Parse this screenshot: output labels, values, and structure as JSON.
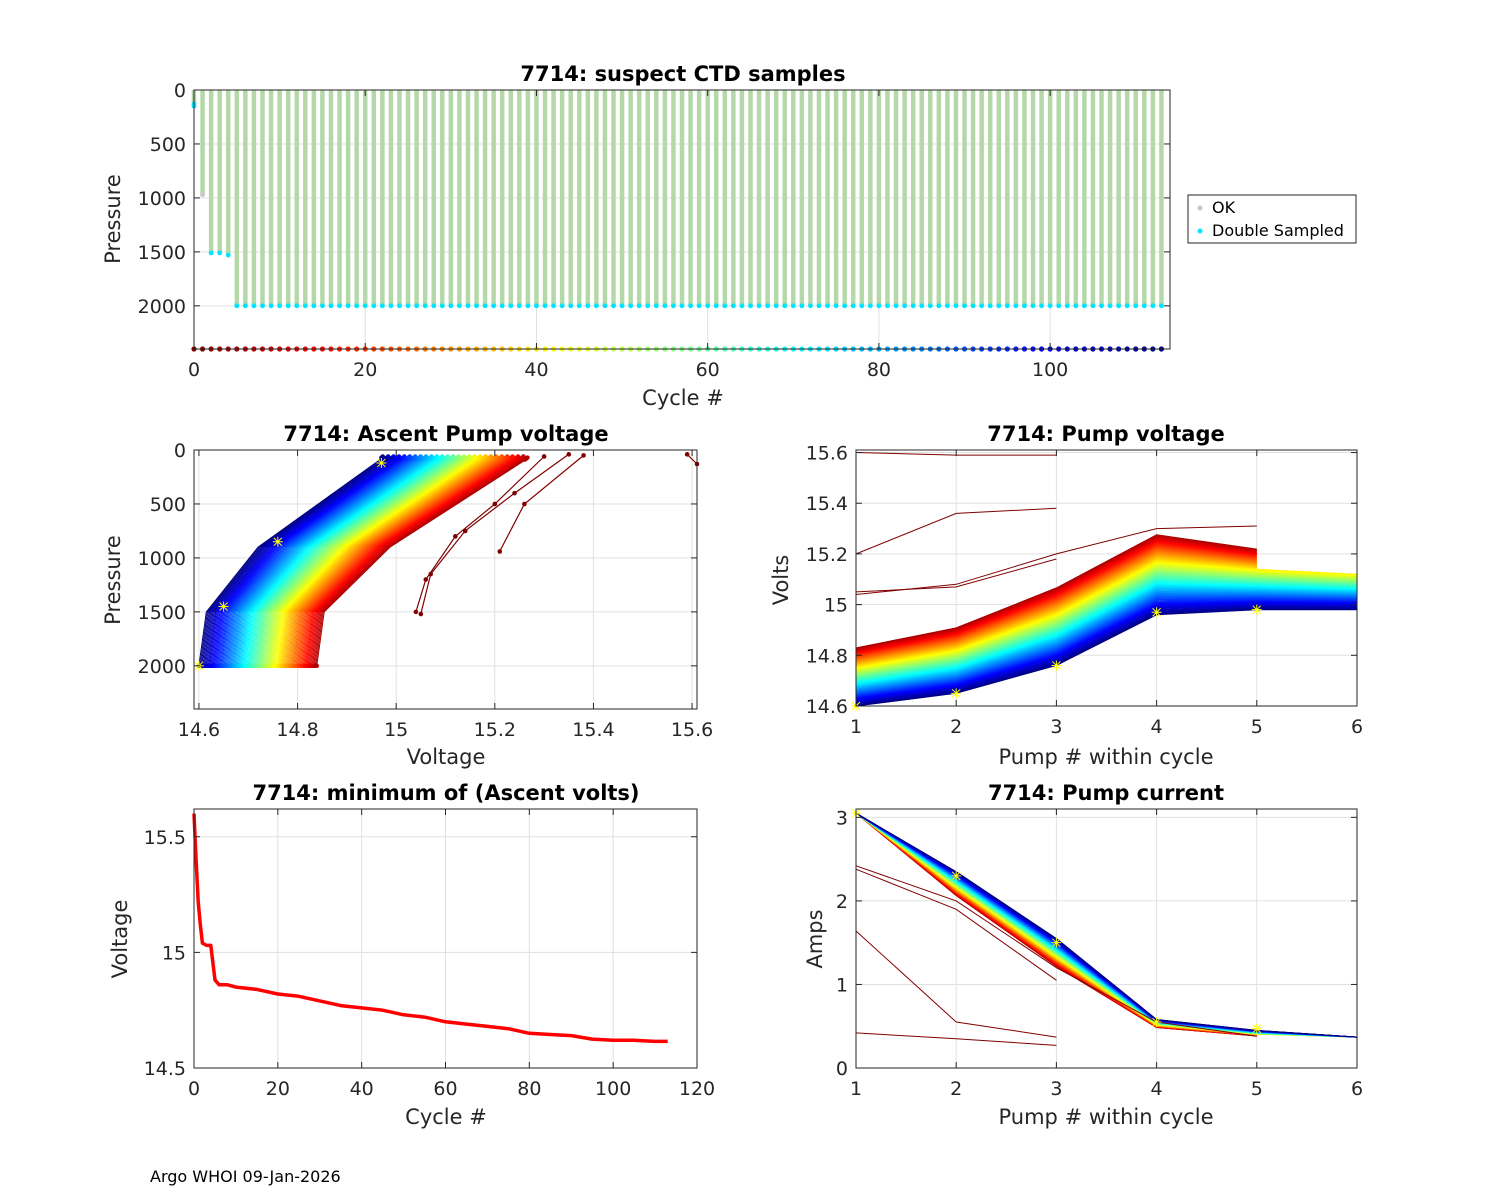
{
  "footer": "Argo WHOI 09-Jan-2026",
  "colors": {
    "ok_bar": "#b5d8a9",
    "double_sampled": "#00e5ff",
    "ok_point": "#c8c8c8",
    "min_line": "#ff0000",
    "marker": "#ffff00",
    "dark_red": "#800000"
  },
  "chart_data": [
    {
      "id": "suspect",
      "type": "scatter",
      "title": "7714: suspect CTD samples",
      "xlabel": "Cycle #",
      "ylabel": "Pressure",
      "xlim": [
        0,
        114
      ],
      "ylim": [
        0,
        2400
      ],
      "y_reversed": true,
      "xticks": [
        "0",
        "20",
        "40",
        "60",
        "80",
        "100"
      ],
      "yticks": [
        "0",
        "500",
        "1000",
        "1500",
        "2000"
      ],
      "legend": [
        {
          "label": "OK",
          "color": "#c8c8c8"
        },
        {
          "label": "Double Sampled",
          "color": "#00e5ff"
        }
      ],
      "profile_depths": {
        "cycles_0_to_4": [
          150,
          970,
          1510,
          1510,
          1530
        ],
        "cycles_5_to_113": 2000
      },
      "cycle_count": 114,
      "colorbar_row_pressure": 2400
    },
    {
      "id": "ascent",
      "type": "line",
      "title": "7714: Ascent Pump voltage",
      "xlabel": "Voltage",
      "ylabel": "Pressure",
      "xlim": [
        14.59,
        15.61
      ],
      "ylim": [
        0,
        2400
      ],
      "y_reversed": true,
      "xticks": [
        "14.6",
        "14.8",
        "15",
        "15.2",
        "15.4",
        "15.6"
      ],
      "yticks": [
        "0",
        "500",
        "1000",
        "1500",
        "2000"
      ],
      "series_summary": "one profile per cycle, colored by cycle number from dark red (early) to dark blue (late)"
    },
    {
      "id": "pumpv",
      "type": "line",
      "title": "7714: Pump voltage",
      "xlabel": "Pump # within cycle",
      "ylabel": "Volts",
      "xlim": [
        1,
        6
      ],
      "ylim": [
        14.6,
        15.61
      ],
      "xticks": [
        "1",
        "2",
        "3",
        "4",
        "5",
        "6"
      ],
      "yticks": [
        "14.6",
        "14.8",
        "15",
        "15.2",
        "15.4",
        "15.6"
      ],
      "series_summary": "one line per cycle across pump number, colored by cycle"
    },
    {
      "id": "minv",
      "type": "line",
      "title": "7714: minimum of (Ascent volts)",
      "xlabel": "Cycle #",
      "ylabel": "Voltage",
      "xlim": [
        0,
        120
      ],
      "ylim": [
        14.5,
        15.62
      ],
      "xticks": [
        "0",
        "20",
        "40",
        "60",
        "80",
        "100",
        "120"
      ],
      "yticks": [
        "14.5",
        "15",
        "15.5"
      ],
      "x": [
        0,
        0.5,
        1,
        1.5,
        2,
        3,
        4,
        5,
        6,
        8,
        10,
        15,
        20,
        25,
        30,
        35,
        40,
        45,
        50,
        55,
        60,
        65,
        70,
        75,
        80,
        85,
        90,
        95,
        100,
        105,
        110,
        113
      ],
      "y": [
        15.6,
        15.4,
        15.22,
        15.12,
        15.04,
        15.03,
        15.03,
        14.88,
        14.86,
        14.86,
        14.85,
        14.84,
        14.82,
        14.81,
        14.79,
        14.77,
        14.76,
        14.75,
        14.73,
        14.72,
        14.7,
        14.69,
        14.68,
        14.67,
        14.65,
        14.645,
        14.64,
        14.625,
        14.62,
        14.62,
        14.615,
        14.615
      ]
    },
    {
      "id": "pumpc",
      "type": "line",
      "title": "7714: Pump current",
      "xlabel": "Pump # within cycle",
      "ylabel": "Amps",
      "xlim": [
        1,
        6
      ],
      "ylim": [
        0,
        3.1
      ],
      "xticks": [
        "1",
        "2",
        "3",
        "4",
        "5",
        "6"
      ],
      "yticks": [
        "0",
        "1",
        "2",
        "3"
      ],
      "series_summary": "one line per cycle across pump number, colored by cycle"
    }
  ]
}
